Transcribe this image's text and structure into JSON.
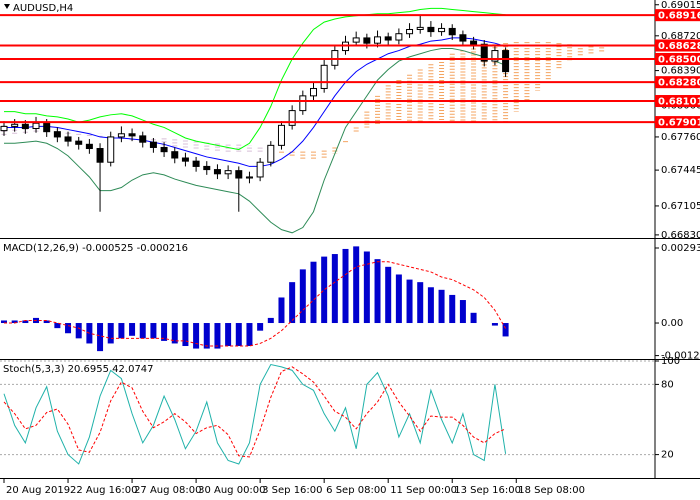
{
  "chart_data": [
    {
      "type": "candlestick",
      "title": "AUDUSD,H4",
      "xlim": [
        -0.375,
        61.0
      ],
      "ylim": [
        0.6681,
        0.6906
      ],
      "yticks": [
        0.69015,
        {
          "value": 0.6872,
          "label": "0.68720"
        },
        {
          "value": 0.6839,
          "label": "0.68390"
        },
        {
          "value": 0.6806,
          "label": "0.68060"
        },
        {
          "value": 0.6776,
          "label": "0.67760"
        },
        0.67445,
        0.67105,
        {
          "value": 0.6683,
          "label": "0.66830"
        }
      ],
      "open": [
        0.6782,
        0.6786,
        0.6788,
        0.6784,
        0.6789,
        0.6781,
        0.6776,
        0.6772,
        0.6769,
        0.6765,
        0.6752,
        0.6776,
        0.6779,
        0.6777,
        0.6771,
        0.6766,
        0.6762,
        0.6756,
        0.6753,
        0.6748,
        0.6745,
        0.6741,
        0.6744,
        0.6737,
        0.6738,
        0.6752,
        0.6768,
        0.6787,
        0.6801,
        0.6815,
        0.6822,
        0.6844,
        0.6858,
        0.6866,
        0.687,
        0.6865,
        0.6871,
        0.6868,
        0.6874,
        0.6878,
        0.688,
        0.6876,
        0.6879,
        0.6873,
        0.6867,
        0.6864,
        0.6848,
        0.6858
      ],
      "high": [
        0.6791,
        0.6793,
        0.6792,
        0.6795,
        0.6793,
        0.6785,
        0.6781,
        0.6776,
        0.6774,
        0.677,
        0.6781,
        0.6786,
        0.6784,
        0.6781,
        0.6775,
        0.6771,
        0.6766,
        0.6761,
        0.6757,
        0.6753,
        0.675,
        0.6749,
        0.6748,
        0.6743,
        0.6756,
        0.6772,
        0.6791,
        0.6806,
        0.682,
        0.6828,
        0.6849,
        0.6863,
        0.6872,
        0.6876,
        0.6874,
        0.6877,
        0.6875,
        0.6879,
        0.6884,
        0.6892,
        0.6886,
        0.6884,
        0.6883,
        0.6877,
        0.6871,
        0.6868,
        0.6862,
        0.6861
      ],
      "low": [
        0.6777,
        0.6781,
        0.6779,
        0.678,
        0.6776,
        0.6771,
        0.6767,
        0.6764,
        0.676,
        0.6705,
        0.6748,
        0.6771,
        0.6772,
        0.6766,
        0.6761,
        0.6757,
        0.6751,
        0.6748,
        0.6743,
        0.674,
        0.6736,
        0.6736,
        0.6705,
        0.6732,
        0.6734,
        0.6748,
        0.6764,
        0.6783,
        0.6797,
        0.6811,
        0.6818,
        0.684,
        0.6854,
        0.6862,
        0.686,
        0.6861,
        0.6863,
        0.6864,
        0.687,
        0.6874,
        0.6871,
        0.6872,
        0.6868,
        0.6862,
        0.6859,
        0.6843,
        0.6844,
        0.6833
      ],
      "close": [
        0.6786,
        0.6788,
        0.6784,
        0.6789,
        0.6781,
        0.6776,
        0.6772,
        0.6769,
        0.6765,
        0.6752,
        0.6776,
        0.6779,
        0.6777,
        0.6771,
        0.6766,
        0.6762,
        0.6756,
        0.6753,
        0.6748,
        0.6745,
        0.6741,
        0.6744,
        0.6737,
        0.6738,
        0.6752,
        0.6768,
        0.6787,
        0.6801,
        0.6815,
        0.6822,
        0.6844,
        0.6858,
        0.6866,
        0.687,
        0.6865,
        0.6871,
        0.6868,
        0.6874,
        0.6878,
        0.688,
        0.6876,
        0.6879,
        0.6873,
        0.6867,
        0.6864,
        0.6848,
        0.6858,
        0.6838
      ],
      "up_color": "#ffffff",
      "down_color": "#000000",
      "lines": [
        {
          "color": "#00ff00",
          "values": [
            0.68,
            0.68,
            0.6798,
            0.6798,
            0.6796,
            0.6795,
            0.6793,
            0.679,
            0.6792,
            0.6795,
            0.6797,
            0.6798,
            0.6796,
            0.6792,
            0.6788,
            0.6785,
            0.678,
            0.6775,
            0.6772,
            0.677,
            0.6768,
            0.6766,
            0.6764,
            0.677,
            0.6785,
            0.6805,
            0.683,
            0.685,
            0.6865,
            0.6878,
            0.6885,
            0.6888,
            0.689,
            0.6891,
            0.6892,
            0.6893,
            0.6893,
            0.6894,
            0.6895,
            0.6897,
            0.6898,
            0.6898,
            0.6897,
            0.6896,
            0.6895,
            0.6894,
            0.6893,
            0.6892
          ]
        },
        {
          "color": "#2e8b57",
          "values": [
            0.677,
            0.677,
            0.6771,
            0.6772,
            0.677,
            0.6765,
            0.6758,
            0.6748,
            0.6738,
            0.6725,
            0.6725,
            0.6728,
            0.6735,
            0.674,
            0.6742,
            0.674,
            0.6736,
            0.6733,
            0.673,
            0.6728,
            0.6726,
            0.6724,
            0.6722,
            0.6715,
            0.6705,
            0.6695,
            0.6688,
            0.6685,
            0.669,
            0.6705,
            0.6735,
            0.676,
            0.6785,
            0.68,
            0.6815,
            0.683,
            0.684,
            0.6848,
            0.6852,
            0.6855,
            0.6858,
            0.686,
            0.686,
            0.6858,
            0.6855,
            0.6852,
            0.6848,
            0.6844
          ]
        },
        {
          "color": "#0000ff",
          "values": [
            0.6785,
            0.6785,
            0.6785,
            0.6786,
            0.6786,
            0.6785,
            0.6783,
            0.6781,
            0.6779,
            0.6776,
            0.6775,
            0.6775,
            0.6774,
            0.6773,
            0.6771,
            0.6769,
            0.6766,
            0.6763,
            0.676,
            0.6757,
            0.6755,
            0.6753,
            0.6751,
            0.6748,
            0.6748,
            0.675,
            0.6755,
            0.6762,
            0.6772,
            0.6785,
            0.68,
            0.6815,
            0.6828,
            0.6838,
            0.6845,
            0.685,
            0.6855,
            0.6858,
            0.6862,
            0.6864,
            0.6867,
            0.6868,
            0.687,
            0.687,
            0.6869,
            0.6867,
            0.6865,
            0.6862
          ]
        }
      ],
      "cloud": {
        "colors": [
          "#f4a460",
          "#d8bfd8"
        ],
        "span_a": [
          0.6778,
          0.6779,
          0.678,
          0.6781,
          0.6781,
          0.678,
          0.6779,
          0.6778,
          0.6777,
          0.6776,
          0.6775,
          0.6774,
          0.6773,
          0.6772,
          0.677,
          0.6768,
          0.6767,
          0.6766,
          0.6765,
          0.6764,
          0.6763,
          0.6762,
          0.6762,
          0.6762,
          0.6762,
          0.6762,
          0.6762,
          0.6762,
          0.6762,
          0.6762,
          0.6763,
          0.6766,
          0.6772,
          0.6785,
          0.68,
          0.6815,
          0.6825,
          0.683,
          0.6835,
          0.684,
          0.6845,
          0.685,
          0.6855,
          0.6858,
          0.686,
          0.6862,
          0.6864,
          0.6865,
          0.6866,
          0.6866,
          0.6866,
          0.6866,
          0.6865,
          0.6864,
          0.6863,
          0.6862,
          0.6861
        ],
        "span_b": [
          0.6787,
          0.6787,
          0.6786,
          0.6785,
          0.6784,
          0.6783,
          0.6782,
          0.6781,
          0.678,
          0.6779,
          0.6778,
          0.6777,
          0.6776,
          0.6776,
          0.6775,
          0.6775,
          0.6774,
          0.6774,
          0.6773,
          0.6772,
          0.6771,
          0.677,
          0.6769,
          0.6768,
          0.6766,
          0.6764,
          0.676,
          0.6757,
          0.6755,
          0.6755,
          0.6755,
          0.676,
          0.677,
          0.678,
          0.6785,
          0.6787,
          0.6788,
          0.679,
          0.679,
          0.679,
          0.679,
          0.679,
          0.679,
          0.679,
          0.679,
          0.679,
          0.679,
          0.679,
          0.68,
          0.681,
          0.682,
          0.683,
          0.684,
          0.6848,
          0.6852,
          0.6855,
          0.6857
        ]
      },
      "level_color": "#ff0000",
      "levels": [
        0.68916,
        0.68628,
        {
          "value": 0.685,
          "label": "0.68500"
        },
        {
          "value": 0.6828,
          "label": "0.68280"
        },
        0.68101,
        0.67901
      ]
    },
    {
      "type": "bar",
      "title": "MACD(12,26,9) -0.000525 -0.000216",
      "xlim": [
        -0.375,
        61.0
      ],
      "ylim": [
        -0.00133,
        0.00325
      ],
      "yticks": [
        0.002937,
        {
          "value": 0,
          "label": "0.00"
        },
        -0.001275
      ],
      "color": "#0000cd",
      "values": [
        0.0001,
        0.0001,
        0.0001,
        0.0002,
        0.0001,
        -0.0002,
        -0.0004,
        -0.0006,
        -0.0008,
        -0.0011,
        -0.0008,
        -0.0006,
        -0.0005,
        -0.0006,
        -0.0006,
        -0.0007,
        -0.0008,
        -0.0009,
        -0.001,
        -0.001,
        -0.001,
        -0.0009,
        -0.0009,
        -0.0009,
        -0.0003,
        0.0002,
        0.001,
        0.0016,
        0.0021,
        0.0024,
        0.0026,
        0.0027,
        0.0029,
        0.003,
        0.0028,
        0.0025,
        0.0022,
        0.0019,
        0.0017,
        0.0016,
        0.0014,
        0.0013,
        0.0011,
        0.0009,
        0.0004,
        0.0,
        -0.0001,
        -0.000525
      ],
      "signal": {
        "color": "#ff0000",
        "style": "dashed",
        "values": [
          0.0,
          0.0,
          0.0001,
          0.0001,
          0.0001,
          0.0,
          -0.0001,
          -0.0002,
          -0.0004,
          -0.0005,
          -0.0006,
          -0.0006,
          -0.0006,
          -0.0006,
          -0.0006,
          -0.0006,
          -0.0007,
          -0.0007,
          -0.0008,
          -0.0009,
          -0.0009,
          -0.0009,
          -0.0009,
          -0.0009,
          -0.0008,
          -0.0006,
          -0.0003,
          0.0001,
          0.0005,
          0.0009,
          0.0013,
          0.0016,
          0.0019,
          0.0022,
          0.0023,
          0.0024,
          0.0024,
          0.0023,
          0.0022,
          0.0021,
          0.002,
          0.0018,
          0.0017,
          0.0015,
          0.0013,
          0.001,
          0.0005,
          -0.000216
        ]
      }
    },
    {
      "type": "line",
      "title": "Stoch(5,3,3) 20.6955 42.0747",
      "xlim": [
        -0.375,
        61.0
      ],
      "ylim": [
        0,
        100
      ],
      "yticks": [
        100,
        80,
        20
      ],
      "grid": true,
      "xticks": [
        {
          "value": 0,
          "label": "20 Aug 2019"
        },
        {
          "value": 6,
          "label": "22 Aug 16:00"
        },
        {
          "value": 12,
          "label": "27 Aug 08:00"
        },
        {
          "value": 18,
          "label": "30 Aug 00:00"
        },
        {
          "value": 24,
          "label": "3 Sep 16:00"
        },
        {
          "value": 30,
          "label": "6 Sep 08:00"
        },
        {
          "value": 36,
          "label": "11 Sep 00:00"
        },
        {
          "value": 42,
          "label": "13 Sep 16:00"
        },
        {
          "value": 48,
          "label": "18 Sep 08:00"
        }
      ],
      "series": [
        {
          "color": "#20b2aa",
          "style": "solid",
          "values": [
            72,
            45,
            30,
            60,
            78,
            40,
            20,
            12,
            35,
            70,
            92,
            85,
            55,
            30,
            45,
            70,
            50,
            25,
            40,
            65,
            30,
            15,
            12,
            30,
            80,
            97,
            95,
            92,
            80,
            75,
            55,
            40,
            60,
            25,
            80,
            90,
            70,
            35,
            55,
            30,
            75,
            50,
            30,
            55,
            20,
            15,
            80,
            20.6955
          ]
        },
        {
          "color": "#ff0000",
          "style": "dashed",
          "values": [
            65,
            55,
            42,
            45,
            56,
            59,
            46,
            24,
            22,
            39,
            66,
            82,
            77,
            57,
            43,
            48,
            55,
            48,
            38,
            43,
            45,
            37,
            19,
            18,
            41,
            69,
            91,
            95,
            89,
            82,
            70,
            57,
            52,
            42,
            55,
            65,
            80,
            65,
            53,
            40,
            53,
            52,
            52,
            45,
            35,
            30,
            38,
            42.0747
          ]
        }
      ]
    }
  ]
}
